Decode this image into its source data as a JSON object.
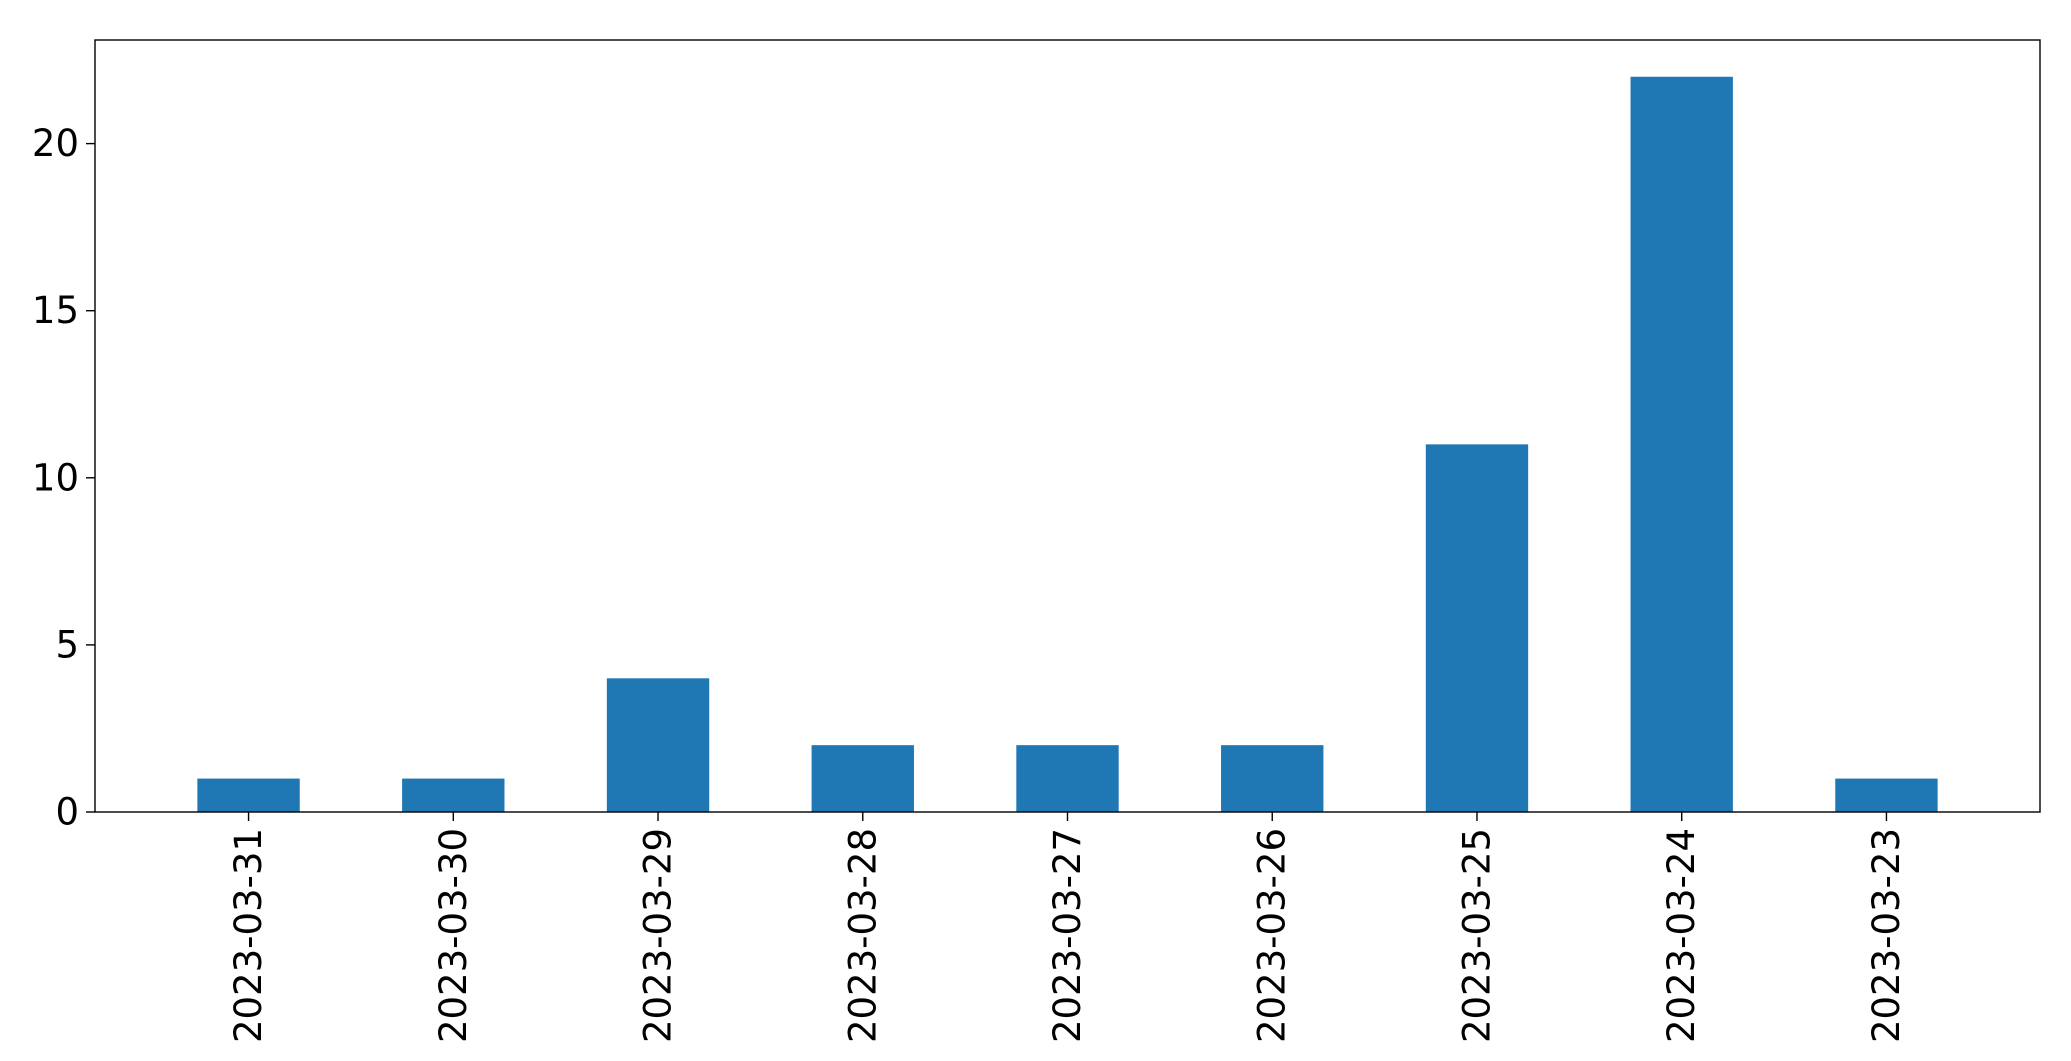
{
  "chart_data": {
    "type": "bar",
    "categories": [
      "2023-03-31",
      "2023-03-30",
      "2023-03-29",
      "2023-03-28",
      "2023-03-27",
      "2023-03-26",
      "2023-03-25",
      "2023-03-24",
      "2023-03-23"
    ],
    "values": [
      1,
      1,
      4,
      2,
      2,
      2,
      11,
      22,
      1
    ],
    "title": "",
    "xlabel": "",
    "ylabel": "",
    "ylim": [
      0,
      23.1
    ],
    "yticks": [
      0,
      5,
      10,
      15,
      20
    ],
    "grid": false,
    "bar_color": "#1f77b4"
  }
}
